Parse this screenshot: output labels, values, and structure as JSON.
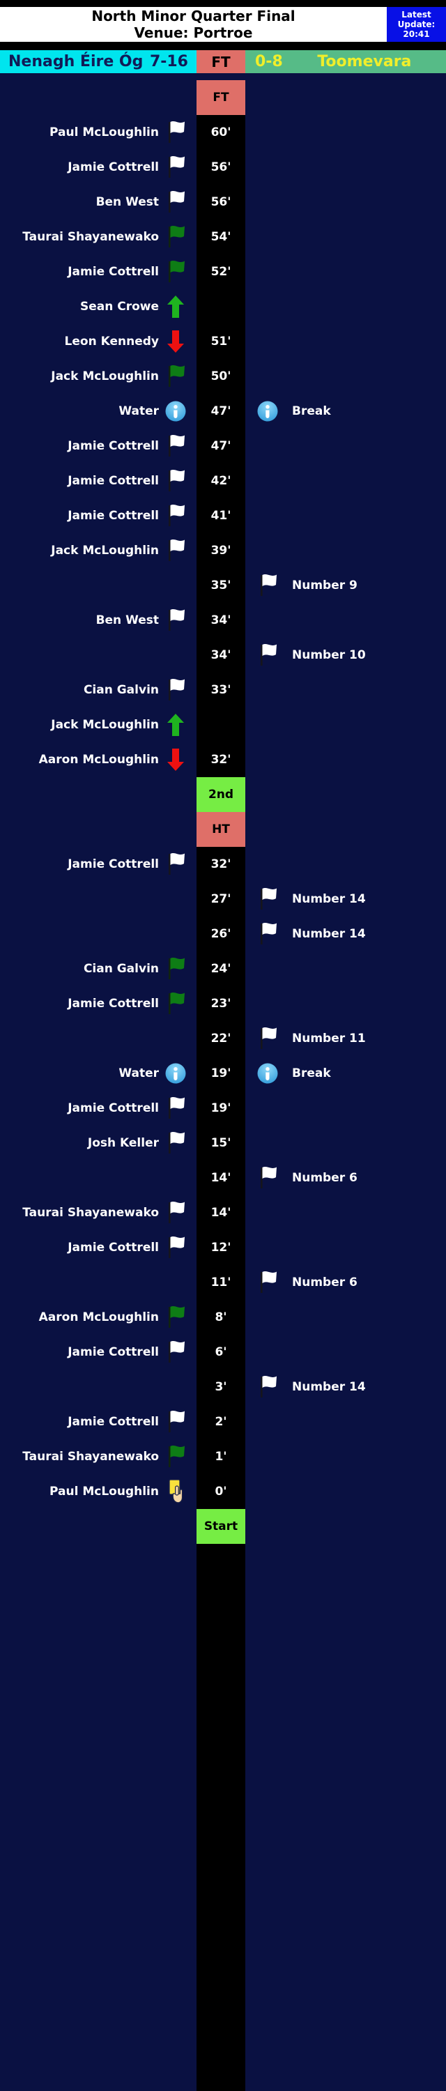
{
  "header": {
    "title_line1": "North Minor Quarter Final",
    "title_line2": "Venue: Portroe",
    "update_line1": "Latest",
    "update_line2": "Update:",
    "update_time": "20:41"
  },
  "scoreboard": {
    "home_team": "Nenagh Éire Óg",
    "home_score": "7-16",
    "status": "FT",
    "away_score": "0-8",
    "away_team": "Toomevara"
  },
  "colors": {
    "page_bg": "#0a1142",
    "home_bg": "#00e5ee",
    "home_text": "#111a57",
    "status_bg": "#df6f68",
    "away_bg": "#56bb87",
    "away_text": "#f0ee2b",
    "update_bg": "#0810e6",
    "marker_red": "#df6f68",
    "marker_green": "#76ed44",
    "goal_flag_green": "#0e7d15",
    "sub_on_green": "#1fb41f",
    "sub_off_red": "#ee1111",
    "info_blue": "#1e8fd5",
    "card_yellow": "#f8e13c"
  },
  "timeline": {
    "rows": [
      {
        "type": "marker",
        "label": "FT",
        "bg": "#df6f68"
      },
      {
        "type": "event",
        "time": "60'",
        "home": "Paul McLoughlin",
        "home_icon": "white-flag",
        "away": "",
        "away_icon": ""
      },
      {
        "type": "event",
        "time": "56'",
        "home": "Jamie Cottrell",
        "home_icon": "white-flag",
        "away": "",
        "away_icon": ""
      },
      {
        "type": "event",
        "time": "56'",
        "home": "Ben West",
        "home_icon": "white-flag",
        "away": "",
        "away_icon": ""
      },
      {
        "type": "event",
        "time": "54'",
        "home": "Taurai Shayanewako",
        "home_icon": "green-flag",
        "away": "",
        "away_icon": ""
      },
      {
        "type": "event",
        "time": "52'",
        "home": "Jamie Cottrell",
        "home_icon": "green-flag",
        "away": "",
        "away_icon": ""
      },
      {
        "type": "event",
        "time": "",
        "home": "Sean Crowe",
        "home_icon": "sub-on-arrow",
        "away": "",
        "away_icon": ""
      },
      {
        "type": "event",
        "time": "51'",
        "home": "Leon Kennedy",
        "home_icon": "sub-off-arrow",
        "away": "",
        "away_icon": ""
      },
      {
        "type": "event",
        "time": "50'",
        "home": "Jack McLoughlin",
        "home_icon": "green-flag",
        "away": "",
        "away_icon": ""
      },
      {
        "type": "event",
        "time": "47'",
        "home": "Water",
        "home_icon": "info",
        "away": "Break",
        "away_icon": "info"
      },
      {
        "type": "event",
        "time": "47'",
        "home": "Jamie Cottrell",
        "home_icon": "white-flag",
        "away": "",
        "away_icon": ""
      },
      {
        "type": "event",
        "time": "42'",
        "home": "Jamie Cottrell",
        "home_icon": "white-flag",
        "away": "",
        "away_icon": ""
      },
      {
        "type": "event",
        "time": "41'",
        "home": "Jamie Cottrell",
        "home_icon": "white-flag",
        "away": "",
        "away_icon": ""
      },
      {
        "type": "event",
        "time": "39'",
        "home": "Jack McLoughlin",
        "home_icon": "white-flag",
        "away": "",
        "away_icon": ""
      },
      {
        "type": "event",
        "time": "35'",
        "home": "",
        "home_icon": "",
        "away": "Number 9",
        "away_icon": "white-flag"
      },
      {
        "type": "event",
        "time": "34'",
        "home": "Ben West",
        "home_icon": "white-flag",
        "away": "",
        "away_icon": ""
      },
      {
        "type": "event",
        "time": "34'",
        "home": "",
        "home_icon": "",
        "away": "Number 10",
        "away_icon": "white-flag"
      },
      {
        "type": "event",
        "time": "33'",
        "home": "Cian Galvin",
        "home_icon": "white-flag",
        "away": "",
        "away_icon": ""
      },
      {
        "type": "event",
        "time": "",
        "home": "Jack McLoughlin",
        "home_icon": "sub-on-arrow",
        "away": "",
        "away_icon": ""
      },
      {
        "type": "event",
        "time": "32'",
        "home": "Aaron McLoughlin",
        "home_icon": "sub-off-arrow",
        "away": "",
        "away_icon": ""
      },
      {
        "type": "marker",
        "label": "2nd",
        "bg": "#76ed44"
      },
      {
        "type": "marker",
        "label": "HT",
        "bg": "#df6f68"
      },
      {
        "type": "event",
        "time": "32'",
        "home": "Jamie Cottrell",
        "home_icon": "white-flag",
        "away": "",
        "away_icon": ""
      },
      {
        "type": "event",
        "time": "27'",
        "home": "",
        "home_icon": "",
        "away": "Number 14",
        "away_icon": "white-flag"
      },
      {
        "type": "event",
        "time": "26'",
        "home": "",
        "home_icon": "",
        "away": "Number 14",
        "away_icon": "white-flag"
      },
      {
        "type": "event",
        "time": "24'",
        "home": "Cian Galvin",
        "home_icon": "green-flag",
        "away": "",
        "away_icon": ""
      },
      {
        "type": "event",
        "time": "23'",
        "home": "Jamie Cottrell",
        "home_icon": "green-flag",
        "away": "",
        "away_icon": ""
      },
      {
        "type": "event",
        "time": "22'",
        "home": "",
        "home_icon": "",
        "away": "Number 11",
        "away_icon": "white-flag"
      },
      {
        "type": "event",
        "time": "19'",
        "home": "Water",
        "home_icon": "info",
        "away": "Break",
        "away_icon": "info"
      },
      {
        "type": "event",
        "time": "19'",
        "home": "Jamie Cottrell",
        "home_icon": "white-flag",
        "away": "",
        "away_icon": ""
      },
      {
        "type": "event",
        "time": "15'",
        "home": "Josh Keller",
        "home_icon": "white-flag",
        "away": "",
        "away_icon": ""
      },
      {
        "type": "event",
        "time": "14'",
        "home": "",
        "home_icon": "",
        "away": "Number 6",
        "away_icon": "white-flag"
      },
      {
        "type": "event",
        "time": "14'",
        "home": "Taurai Shayanewako",
        "home_icon": "white-flag",
        "away": "",
        "away_icon": ""
      },
      {
        "type": "event",
        "time": "12'",
        "home": "Jamie Cottrell",
        "home_icon": "white-flag",
        "away": "",
        "away_icon": ""
      },
      {
        "type": "event",
        "time": "11'",
        "home": "",
        "home_icon": "",
        "away": "Number 6",
        "away_icon": "white-flag"
      },
      {
        "type": "event",
        "time": "8'",
        "home": "Aaron McLoughlin",
        "home_icon": "green-flag",
        "away": "",
        "away_icon": ""
      },
      {
        "type": "event",
        "time": "6'",
        "home": "Jamie Cottrell",
        "home_icon": "white-flag",
        "away": "",
        "away_icon": ""
      },
      {
        "type": "event",
        "time": "3'",
        "home": "",
        "home_icon": "",
        "away": "Number 14",
        "away_icon": "white-flag"
      },
      {
        "type": "event",
        "time": "2'",
        "home": "Jamie Cottrell",
        "home_icon": "white-flag",
        "away": "",
        "away_icon": ""
      },
      {
        "type": "event",
        "time": "1'",
        "home": "Taurai Shayanewako",
        "home_icon": "green-flag",
        "away": "",
        "away_icon": ""
      },
      {
        "type": "event",
        "time": "0'",
        "home": "Paul McLoughlin",
        "home_icon": "yellow-card",
        "away": "",
        "away_icon": ""
      },
      {
        "type": "marker",
        "label": "Start",
        "bg": "#76ed44"
      }
    ]
  }
}
